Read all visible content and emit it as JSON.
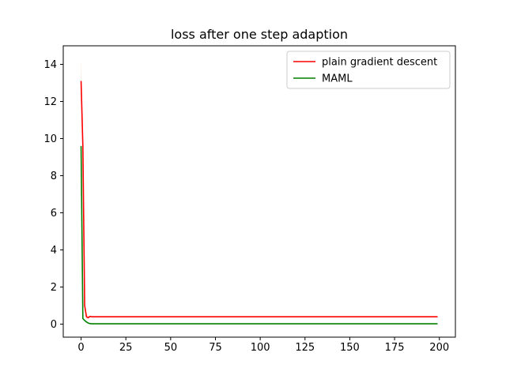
{
  "chart_data": {
    "type": "line",
    "title": "loss after one step adaption",
    "xlabel": "",
    "ylabel": "",
    "xlim": [
      -9.95,
      208.95
    ],
    "ylim": [
      -0.7,
      15.0
    ],
    "xticks": [
      0,
      25,
      50,
      75,
      100,
      125,
      150,
      175,
      200
    ],
    "yticks": [
      0,
      2,
      4,
      6,
      8,
      10,
      12,
      14
    ],
    "grid": false,
    "legend_position": "top-right",
    "series": [
      {
        "name": "plain gradient descent",
        "color": "#ff0000",
        "x": [
          0,
          1,
          2,
          3,
          4,
          5,
          6,
          8,
          10,
          199
        ],
        "values": [
          13.1,
          9.6,
          1.0,
          0.4,
          0.35,
          0.42,
          0.4,
          0.4,
          0.4,
          0.4
        ],
        "band": {
          "color": "#f5c9a8",
          "x": [
            0,
            1,
            2,
            3,
            4
          ],
          "upper": [
            14.3,
            10.4,
            1.3,
            0.55,
            0.45
          ],
          "lower": [
            11.9,
            8.8,
            0.8,
            0.3,
            0.3
          ]
        }
      },
      {
        "name": "MAML",
        "color": "#008000",
        "x": [
          0,
          1,
          2,
          3,
          4,
          5,
          6,
          8,
          10,
          199
        ],
        "values": [
          9.6,
          0.3,
          0.2,
          0.12,
          0.06,
          0.03,
          0.02,
          0.02,
          0.02,
          0.02
        ]
      }
    ]
  }
}
